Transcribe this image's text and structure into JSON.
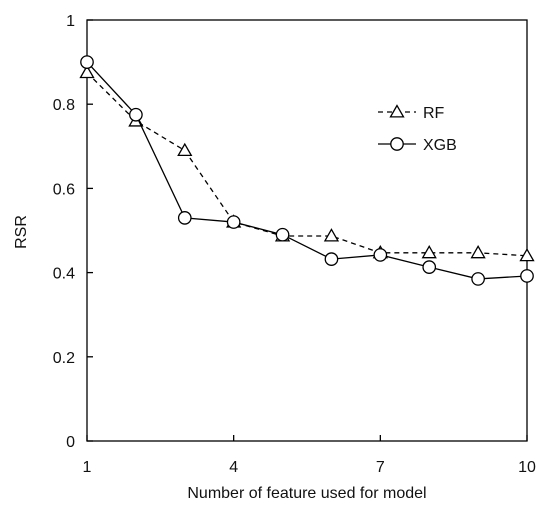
{
  "chart_data": {
    "type": "line",
    "xlabel": "Number of feature used for model",
    "ylabel": "RSR",
    "xlim": [
      1,
      10
    ],
    "ylim": [
      0,
      1
    ],
    "xticks": [
      "1",
      "4",
      "7",
      "10"
    ],
    "xtick_values": [
      1,
      4,
      7,
      10
    ],
    "yticks": [
      "0",
      "0.2",
      "0.4",
      "0.6",
      "0.8",
      "1"
    ],
    "ytick_values": [
      0,
      0.2,
      0.4,
      0.6,
      0.8,
      1
    ],
    "grid": false,
    "legend_position": "top-right",
    "x": [
      1,
      2,
      3,
      4,
      5,
      6,
      7,
      8,
      9,
      10
    ],
    "series": [
      {
        "name": "RF",
        "values": [
          0.875,
          0.76,
          0.69,
          0.52,
          0.487,
          0.487,
          0.447,
          0.447,
          0.447,
          0.44
        ],
        "marker": "triangle",
        "line_style": "dashed",
        "color": "#000000"
      },
      {
        "name": "XGB",
        "values": [
          0.9,
          0.775,
          0.53,
          0.52,
          0.49,
          0.432,
          0.442,
          0.413,
          0.385,
          0.392
        ],
        "marker": "circle",
        "line_style": "solid",
        "color": "#000000"
      }
    ]
  }
}
